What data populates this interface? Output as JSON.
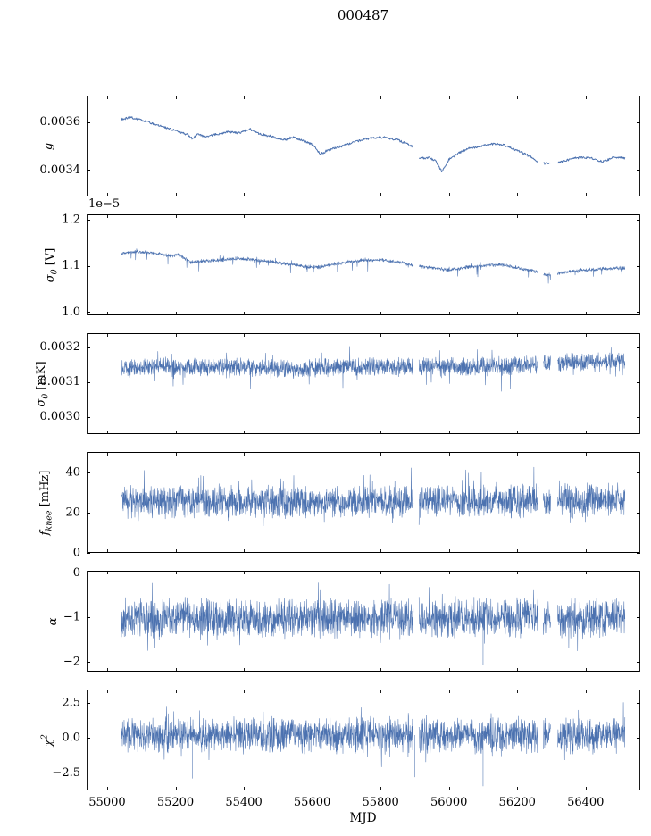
{
  "title": "000487",
  "accent_color": "#4c72b0",
  "axis_color": "#000000",
  "background": "#ffffff",
  "chart_data": {
    "type": "line",
    "title": "000487",
    "xlabel": "MJD",
    "xlim": [
      54940,
      56560
    ],
    "xticks": [
      55000,
      55200,
      55400,
      55600,
      55800,
      56000,
      56200,
      56400
    ],
    "xtick_labels": [
      "55000",
      "55200",
      "55400",
      "55600",
      "55800",
      "56000",
      "56200",
      "56400"
    ],
    "x_data_range": [
      55040,
      56515
    ],
    "gaps": [
      [
        55896,
        55912
      ],
      [
        56262,
        56276
      ],
      [
        56298,
        56318
      ]
    ],
    "legend": "none",
    "grid": false,
    "panels": [
      {
        "id": "g",
        "ylabel": {
          "pre": "g",
          "sub": "",
          "sup": "",
          "post": ""
        },
        "ylim": [
          0.00329,
          0.00371
        ],
        "yticks": [
          0.0034,
          0.0036
        ],
        "ytick_labels": [
          "0.0034",
          "0.0036"
        ],
        "series": {
          "kind": "smooth",
          "noise": 4.5e-06,
          "spike_prob": 0,
          "spike_up": 0,
          "spike_dn": 0,
          "clip": [
            0.00333,
            0.00368
          ],
          "trend": [
            [
              55040,
              0.003612
            ],
            [
              55070,
              0.003618
            ],
            [
              55100,
              0.003606
            ],
            [
              55140,
              0.00359
            ],
            [
              55180,
              0.003572
            ],
            [
              55210,
              0.00356
            ],
            [
              55235,
              0.003548
            ],
            [
              55250,
              0.00353
            ],
            [
              55265,
              0.00355
            ],
            [
              55290,
              0.003538
            ],
            [
              55320,
              0.003548
            ],
            [
              55355,
              0.003558
            ],
            [
              55390,
              0.003552
            ],
            [
              55415,
              0.003572
            ],
            [
              55440,
              0.003555
            ],
            [
              55465,
              0.003542
            ],
            [
              55495,
              0.003532
            ],
            [
              55520,
              0.003526
            ],
            [
              55545,
              0.003538
            ],
            [
              55570,
              0.003528
            ],
            [
              55600,
              0.00351
            ],
            [
              55625,
              0.003472
            ],
            [
              55645,
              0.003488
            ],
            [
              55670,
              0.0035
            ],
            [
              55700,
              0.003512
            ],
            [
              55730,
              0.003525
            ],
            [
              55760,
              0.003535
            ],
            [
              55790,
              0.003538
            ],
            [
              55820,
              0.003535
            ],
            [
              55850,
              0.003525
            ],
            [
              55875,
              0.003512
            ],
            [
              55895,
              0.003498
            ],
            [
              55915,
              0.003448
            ],
            [
              55940,
              0.003452
            ],
            [
              55960,
              0.003445
            ],
            [
              55980,
              0.003398
            ],
            [
              56000,
              0.003448
            ],
            [
              56030,
              0.003475
            ],
            [
              56060,
              0.003492
            ],
            [
              56100,
              0.0035
            ],
            [
              56140,
              0.003505
            ],
            [
              56170,
              0.003498
            ],
            [
              56200,
              0.003478
            ],
            [
              56230,
              0.003462
            ],
            [
              56255,
              0.00344
            ],
            [
              56280,
              0.003428
            ],
            [
              56320,
              0.003432
            ],
            [
              56355,
              0.003445
            ],
            [
              56390,
              0.003452
            ],
            [
              56420,
              0.003448
            ],
            [
              56450,
              0.003435
            ],
            [
              56480,
              0.003452
            ],
            [
              56515,
              0.003448
            ]
          ],
          "outliers": []
        }
      },
      {
        "id": "sigma0_V",
        "ylabel": {
          "pre": "σ",
          "sub": "0",
          "sup": "",
          "post": " [V]"
        },
        "offset_text": "1e−5",
        "ylim": [
          0.993,
          1.212
        ],
        "yticks": [
          1.0,
          1.1,
          1.2
        ],
        "ytick_labels": [
          "1.0",
          "1.1",
          "1.2"
        ],
        "series": {
          "kind": "noisy",
          "noise": 0.0045,
          "spike_prob": 0.015,
          "spike_up": 0.008,
          "spike_dn": 0.022,
          "clip": [
            1.045,
            1.158
          ],
          "trend": [
            [
              55040,
              1.127
            ],
            [
              55090,
              1.131
            ],
            [
              55140,
              1.128
            ],
            [
              55180,
              1.122
            ],
            [
              55210,
              1.124
            ],
            [
              55245,
              1.108
            ],
            [
              55280,
              1.11
            ],
            [
              55330,
              1.113
            ],
            [
              55380,
              1.116
            ],
            [
              55430,
              1.113
            ],
            [
              55480,
              1.109
            ],
            [
              55530,
              1.104
            ],
            [
              55580,
              1.099
            ],
            [
              55620,
              1.097
            ],
            [
              55660,
              1.104
            ],
            [
              55700,
              1.108
            ],
            [
              55750,
              1.112
            ],
            [
              55800,
              1.113
            ],
            [
              55850,
              1.109
            ],
            [
              55900,
              1.101
            ],
            [
              55950,
              1.096
            ],
            [
              56000,
              1.091
            ],
            [
              56050,
              1.097
            ],
            [
              56100,
              1.101
            ],
            [
              56150,
              1.103
            ],
            [
              56200,
              1.096
            ],
            [
              56250,
              1.089
            ],
            [
              56285,
              1.08
            ],
            [
              56330,
              1.086
            ],
            [
              56380,
              1.09
            ],
            [
              56440,
              1.093
            ],
            [
              56515,
              1.096
            ]
          ],
          "outliers": []
        }
      },
      {
        "id": "sigma0_mK",
        "ylabel": {
          "pre": "σ",
          "sub": "0",
          "sup": "",
          "post": " [mK]"
        },
        "ylim": [
          0.00295,
          0.00324
        ],
        "yticks": [
          0.003,
          0.0031,
          0.0032
        ],
        "ytick_labels": [
          "0.0030",
          "0.0031",
          "0.0032"
        ],
        "series": {
          "kind": "noisy",
          "noise": 3e-05,
          "spike_prob": 0.02,
          "spike_up": 5.5e-05,
          "spike_dn": 5.5e-05,
          "clip": [
            0.003045,
            0.003228
          ],
          "trend": [
            [
              55040,
              0.003138
            ],
            [
              55150,
              0.003144
            ],
            [
              55250,
              0.00314
            ],
            [
              55350,
              0.003143
            ],
            [
              55450,
              0.003139
            ],
            [
              55550,
              0.003137
            ],
            [
              55650,
              0.003142
            ],
            [
              55750,
              0.003144
            ],
            [
              55850,
              0.003141
            ],
            [
              55950,
              0.003147
            ],
            [
              56050,
              0.003143
            ],
            [
              56150,
              0.003146
            ],
            [
              56250,
              0.003152
            ],
            [
              56350,
              0.003156
            ],
            [
              56450,
              0.003158
            ],
            [
              56515,
              0.00316
            ]
          ],
          "outliers": []
        }
      },
      {
        "id": "fknee",
        "ylabel": {
          "pre": "f",
          "sub": "knee",
          "sup": "",
          "post": " [mHz]"
        },
        "ylim": [
          0,
          50.2
        ],
        "yticks": [
          0,
          20,
          40
        ],
        "ytick_labels": [
          "0",
          "20",
          "40"
        ],
        "series": {
          "kind": "noisy",
          "noise": 9,
          "spike_prob": 0.04,
          "spike_up": 12,
          "spike_dn": 7,
          "clip": [
            8.5,
            49.6
          ],
          "trend": [
            [
              55040,
              26
            ],
            [
              55400,
              25
            ],
            [
              55800,
              25.5
            ],
            [
              56200,
              26
            ],
            [
              56515,
              26
            ]
          ],
          "outliers": []
        }
      },
      {
        "id": "alpha",
        "ylabel": {
          "pre": "α",
          "sub": "",
          "sup": "",
          "post": ""
        },
        "ylim": [
          -2.22,
          0.05
        ],
        "yticks": [
          0,
          -1,
          -2
        ],
        "ytick_labels": [
          "0",
          "−1",
          "−2"
        ],
        "series": {
          "kind": "noisy",
          "noise": 0.5,
          "spike_prob": 0.03,
          "spike_up": 0.45,
          "spike_dn": 0.45,
          "clip": [
            -2.08,
            -0.18
          ],
          "trend": [
            [
              55040,
              -1.02
            ],
            [
              55500,
              -1.0
            ],
            [
              56000,
              -1.02
            ],
            [
              56515,
              -1.0
            ]
          ],
          "outliers": [
            [
              55480,
              -1.98
            ],
            [
              56100,
              -2.08
            ]
          ]
        }
      },
      {
        "id": "chi2",
        "ylabel": {
          "pre": "χ",
          "sub": "",
          "sup": "2",
          "post": ""
        },
        "ylim": [
          -3.75,
          3.45
        ],
        "yticks": [
          2.5,
          0.0,
          -2.5
        ],
        "ytick_labels": [
          "2.5",
          "0.0",
          "−2.5"
        ],
        "series": {
          "kind": "noisy",
          "noise": 1.4,
          "spike_prob": 0.05,
          "spike_up": 1.3,
          "spike_dn": 1.3,
          "clip": [
            -3.4,
            3.3
          ],
          "trend": [
            [
              55040,
              0.2
            ],
            [
              56515,
              0.2
            ]
          ],
          "outliers": [
            [
              55250,
              -2.9
            ],
            [
              55900,
              -2.8
            ],
            [
              56100,
              -3.45
            ]
          ]
        }
      }
    ]
  }
}
